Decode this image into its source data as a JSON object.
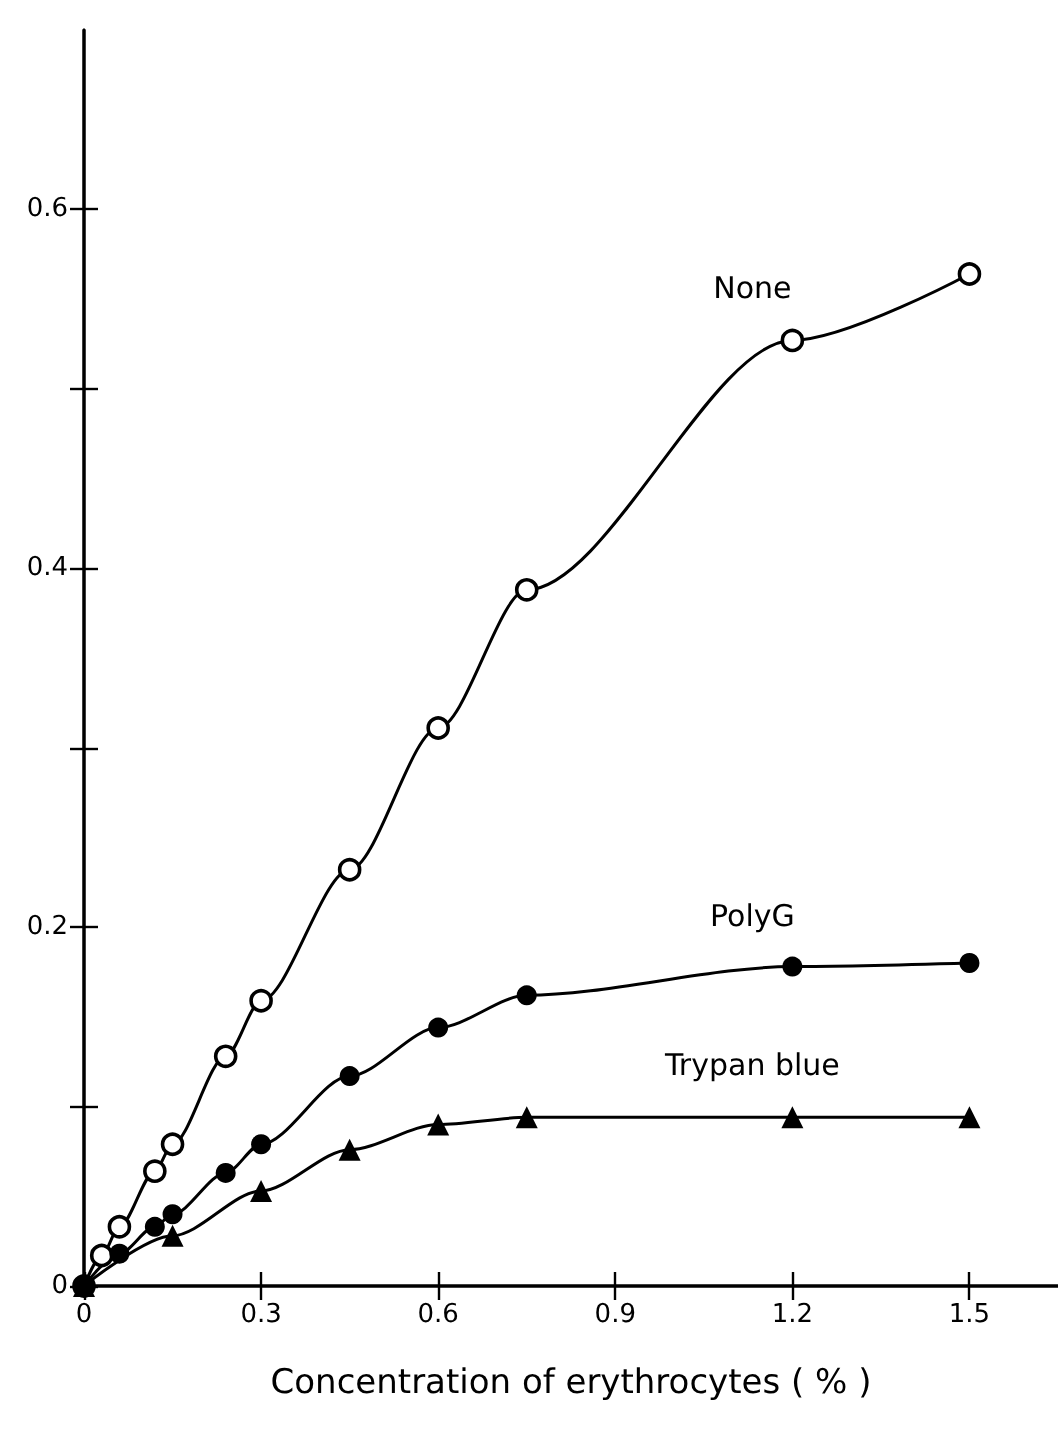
{
  "chart_data": {
    "type": "line",
    "xlabel": "Concentration of erythrocytes ( % )",
    "xlim": [
      0,
      1.65
    ],
    "xticks": [
      0,
      0.3,
      0.6,
      0.9,
      1.2,
      1.5
    ],
    "ylim": [
      0,
      0.7
    ],
    "yticks": [
      0,
      {
        "value": 0.1,
        "label": null
      },
      0.2,
      {
        "value": 0.3,
        "label": null
      },
      0.4,
      {
        "value": 0.5,
        "label": null
      },
      0.6
    ],
    "grid": false,
    "legend": false,
    "line_style": "solid",
    "series": [
      {
        "name": "None",
        "color": "#000000",
        "marker": "open circle",
        "x": [
          0,
          0.03,
          0.06,
          0.12,
          0.15,
          0.24,
          0.3,
          0.45,
          0.6,
          0.75,
          1.2,
          1.5
        ],
        "values": [
          0,
          0.017,
          0.033,
          0.064,
          0.079,
          0.128,
          0.159,
          0.232,
          0.311,
          0.388,
          0.527,
          0.564
        ]
      },
      {
        "name": "PolyG",
        "color": "#000000",
        "marker": "circle",
        "x": [
          0,
          0.06,
          0.12,
          0.15,
          0.24,
          0.3,
          0.45,
          0.6,
          0.75,
          1.2,
          1.5
        ],
        "values": [
          0,
          0.018,
          0.033,
          0.04,
          0.063,
          0.079,
          0.117,
          0.144,
          0.162,
          0.178,
          0.18
        ]
      },
      {
        "name": "Trypan blue",
        "color": "#000000",
        "marker": "triangle",
        "x": [
          0,
          0.15,
          0.3,
          0.45,
          0.6,
          0.75,
          1.2,
          1.5
        ],
        "values": [
          0,
          0.028,
          0.053,
          0.076,
          0.09,
          0.094,
          0.094,
          0.094
        ]
      }
    ]
  }
}
